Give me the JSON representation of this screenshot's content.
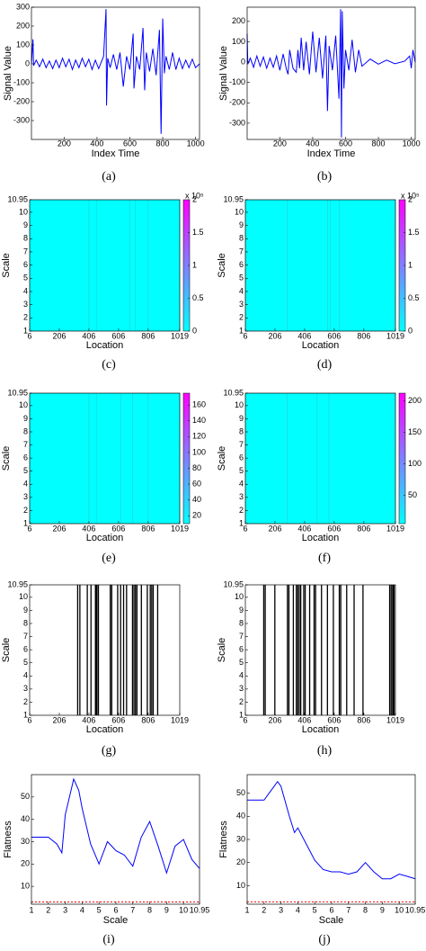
{
  "chart_data": [
    {
      "type": "line",
      "caption": "(a)",
      "xlabel": "Index Time",
      "ylabel": "Signal Value",
      "color": "#0000ff",
      "x": [
        1,
        10,
        14,
        30,
        50,
        70,
        90,
        110,
        130,
        150,
        170,
        190,
        210,
        230,
        250,
        270,
        290,
        310,
        330,
        350,
        370,
        390,
        410,
        440,
        455,
        458,
        465,
        480,
        500,
        520,
        540,
        560,
        580,
        600,
        620,
        625,
        640,
        660,
        680,
        690,
        700,
        720,
        740,
        760,
        780,
        790,
        800,
        810,
        820,
        840,
        860,
        880,
        900,
        920,
        940,
        960,
        980,
        1000,
        1024
      ],
      "values": [
        0,
        130,
        -10,
        20,
        -15,
        25,
        -20,
        15,
        -25,
        20,
        -20,
        30,
        -15,
        25,
        -30,
        20,
        -20,
        30,
        -15,
        25,
        -30,
        20,
        -25,
        40,
        290,
        -220,
        30,
        -20,
        50,
        -30,
        60,
        -120,
        40,
        -30,
        160,
        -130,
        40,
        -30,
        190,
        -140,
        60,
        -40,
        80,
        -60,
        180,
        -370,
        240,
        -50,
        40,
        -30,
        60,
        -30,
        30,
        -25,
        20,
        -20,
        25,
        -20,
        0
      ],
      "xlim": [
        1,
        1024
      ],
      "xticks": [
        200,
        400,
        600,
        800,
        1000
      ],
      "ylim": [
        -400,
        300
      ],
      "yticks": [
        -300,
        -200,
        -100,
        0,
        100,
        200,
        300
      ]
    },
    {
      "type": "line",
      "caption": "(b)",
      "xlabel": "Index Time",
      "ylabel": "Signal Value",
      "color": "#0000ff",
      "x": [
        1,
        5,
        20,
        40,
        60,
        80,
        100,
        120,
        140,
        160,
        180,
        200,
        220,
        240,
        250,
        260,
        280,
        300,
        310,
        320,
        330,
        345,
        360,
        380,
        400,
        420,
        440,
        460,
        480,
        490,
        500,
        520,
        540,
        560,
        570,
        575,
        580,
        590,
        600,
        620,
        640,
        660,
        680,
        700,
        750,
        800,
        850,
        900,
        960,
        990,
        1000,
        1010,
        1024
      ],
      "values": [
        140,
        -10,
        20,
        -25,
        30,
        -20,
        25,
        -30,
        20,
        -25,
        30,
        -40,
        40,
        -35,
        -60,
        60,
        -30,
        -50,
        60,
        -30,
        120,
        -40,
        100,
        -60,
        150,
        -50,
        120,
        -80,
        130,
        -240,
        80,
        -40,
        130,
        -180,
        260,
        -370,
        250,
        -130,
        60,
        -40,
        110,
        -50,
        60,
        -20,
        15,
        -10,
        10,
        -8,
        5,
        30,
        -30,
        60,
        0
      ],
      "xlim": [
        1,
        1024
      ],
      "xticks": [
        200,
        400,
        600,
        800,
        1000
      ],
      "ylim": [
        -380,
        270
      ],
      "yticks": [
        -300,
        -200,
        -100,
        0,
        100,
        200
      ]
    },
    {
      "type": "heatmap",
      "caption": "(c)",
      "xlabel": "Location",
      "ylabel": "Scale",
      "colormap": "cool",
      "x": [
        406,
        456,
        680,
        720,
        806
      ],
      "xlim": [
        6,
        1019
      ],
      "xticks": [
        6,
        206,
        406,
        606,
        806,
        1019
      ],
      "ylim": [
        1,
        10.95
      ],
      "yticks": [
        1,
        2,
        3,
        4,
        5,
        6,
        7,
        8,
        9,
        10,
        10.95
      ],
      "zlim": [
        0,
        200000
      ],
      "colorbar_label": "x 10⁵",
      "zticks": [
        0,
        {
          "value": 50000,
          "label": "0.5"
        },
        {
          "value": 100000,
          "label": "1"
        },
        {
          "value": 150000,
          "label": "1.5"
        },
        {
          "value": 200000,
          "label": "2"
        }
      ]
    },
    {
      "type": "heatmap",
      "caption": "(d)",
      "xlabel": "Location",
      "ylabel": "Scale",
      "colormap": "cool",
      "x": [
        290,
        560,
        580,
        640
      ],
      "xlim": [
        6,
        1019
      ],
      "xticks": [
        6,
        206,
        406,
        606,
        806,
        1019
      ],
      "ylim": [
        1,
        10.95
      ],
      "yticks": [
        1,
        2,
        3,
        4,
        5,
        6,
        7,
        8,
        9,
        10,
        10.95
      ],
      "zlim": [
        0,
        200000
      ],
      "colorbar_label": "x 10⁵",
      "zticks": [
        0,
        {
          "value": 50000,
          "label": "0.5"
        },
        {
          "value": 100000,
          "label": "1"
        },
        {
          "value": 150000,
          "label": "1.5"
        },
        {
          "value": 200000,
          "label": "2"
        }
      ]
    },
    {
      "type": "heatmap",
      "caption": "(e)",
      "xlabel": "Location",
      "ylabel": "Scale",
      "colormap": "cool",
      "x": [
        406,
        456,
        620,
        700,
        806
      ],
      "xlim": [
        6,
        1019
      ],
      "xticks": [
        6,
        206,
        406,
        606,
        806,
        1019
      ],
      "ylim": [
        1,
        10.95
      ],
      "yticks": [
        1,
        2,
        3,
        4,
        5,
        6,
        7,
        8,
        9,
        10,
        10.95
      ],
      "zlim": [
        10,
        175
      ],
      "zticks": [
        20,
        40,
        60,
        80,
        100,
        120,
        140,
        160
      ]
    },
    {
      "type": "heatmap",
      "caption": "(f)",
      "xlabel": "Location",
      "ylabel": "Scale",
      "colormap": "cool",
      "x": [
        290,
        490,
        570
      ],
      "xlim": [
        6,
        1019
      ],
      "xticks": [
        6,
        206,
        406,
        606,
        806,
        1019
      ],
      "ylim": [
        1,
        10.95
      ],
      "yticks": [
        1,
        2,
        3,
        4,
        5,
        6,
        7,
        8,
        9,
        10,
        10.95
      ],
      "zlim": [
        5,
        212
      ],
      "zticks": [
        50,
        100,
        150,
        200
      ]
    },
    {
      "type": "raster",
      "caption": "(g)",
      "xlabel": "Location",
      "ylabel": "Scale",
      "color": "#000000",
      "x": [
        330,
        345,
        395,
        420,
        450,
        455,
        460,
        470,
        550,
        560,
        600,
        620,
        640,
        660,
        700,
        710,
        720,
        730,
        760,
        800,
        820,
        830,
        840,
        870
      ],
      "xlim": [
        6,
        1019
      ],
      "xticks": [
        6,
        206,
        406,
        606,
        806,
        1019
      ],
      "ylim": [
        1,
        10.95
      ],
      "yticks": [
        1,
        2,
        3,
        4,
        5,
        6,
        7,
        8,
        9,
        10,
        10.95
      ]
    },
    {
      "type": "raster",
      "caption": "(h)",
      "xlabel": "Location",
      "ylabel": "Scale",
      "color": "#000000",
      "x": [
        130,
        140,
        205,
        290,
        300,
        330,
        350,
        360,
        370,
        380,
        400,
        410,
        440,
        470,
        480,
        520,
        560,
        600,
        640,
        650,
        690,
        740,
        800,
        980,
        990,
        1000,
        1005,
        1010
      ],
      "xlim": [
        6,
        1019
      ],
      "xticks": [
        6,
        206,
        406,
        606,
        806,
        1019
      ],
      "ylim": [
        1,
        10.95
      ],
      "yticks": [
        1,
        2,
        3,
        4,
        5,
        6,
        7,
        8,
        9,
        10,
        10.95
      ]
    },
    {
      "type": "line",
      "caption": "(i)",
      "xlabel": "Scale",
      "ylabel": "Flatness",
      "color": "#0000ff",
      "x": [
        1,
        2,
        2.5,
        2.8,
        3,
        3.5,
        3.8,
        4,
        4.5,
        5,
        5.5,
        6,
        6.5,
        7,
        7.5,
        8,
        8.5,
        9,
        9.5,
        10,
        10.5,
        10.95
      ],
      "values": [
        32,
        32,
        29,
        25,
        42,
        58,
        53,
        45,
        29,
        20,
        30,
        26,
        24,
        19,
        32,
        39,
        28,
        16,
        28,
        31,
        22,
        18
      ],
      "reference_y": 3,
      "reference_color": "#ff0000",
      "xlim": [
        1,
        10.95
      ],
      "xticks": [
        1,
        2,
        3,
        4,
        5,
        6,
        7,
        8,
        9,
        10,
        10.95
      ],
      "ylim": [
        2,
        60
      ],
      "yticks": [
        10,
        20,
        30,
        40,
        50
      ]
    },
    {
      "type": "line",
      "caption": "(j)",
      "xlabel": "Scale",
      "ylabel": "Flatness",
      "color": "#0000ff",
      "x": [
        1,
        2,
        2.5,
        2.8,
        3,
        3.5,
        3.8,
        4,
        4.5,
        5,
        5.5,
        6,
        6.5,
        7,
        7.5,
        8,
        8.5,
        9,
        9.5,
        10,
        10.5,
        10.95
      ],
      "values": [
        47,
        47,
        52,
        55,
        53,
        40,
        33,
        35,
        28,
        21,
        17,
        16,
        16,
        15,
        16,
        20,
        16,
        13,
        13,
        15,
        14,
        13
      ],
      "reference_y": 3,
      "reference_color": "#ff0000",
      "xlim": [
        1,
        10.95
      ],
      "xticks": [
        1,
        2,
        3,
        4,
        5,
        6,
        7,
        8,
        9,
        10,
        10.95
      ],
      "ylim": [
        2,
        58
      ],
      "yticks": [
        10,
        20,
        30,
        40,
        50
      ]
    }
  ]
}
